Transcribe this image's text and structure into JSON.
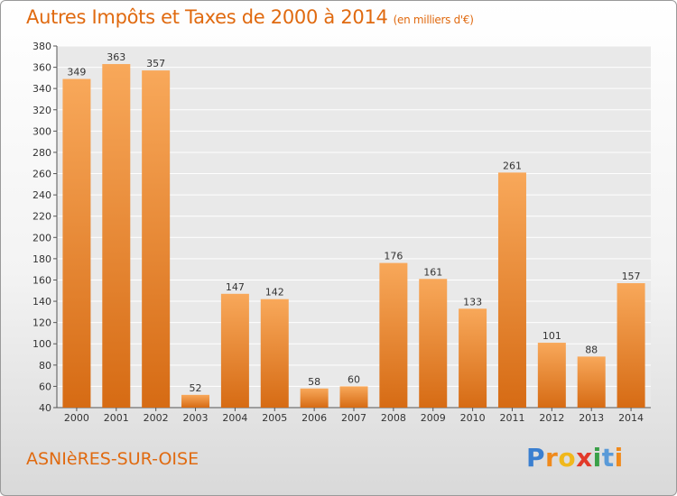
{
  "chart_data": {
    "type": "bar",
    "title": "Autres Impôts et Taxes de 2000 à 2014",
    "subtitle": "(en milliers d'€)",
    "categories": [
      "2000",
      "2001",
      "2002",
      "2003",
      "2004",
      "2005",
      "2006",
      "2007",
      "2008",
      "2009",
      "2010",
      "2011",
      "2012",
      "2013",
      "2014"
    ],
    "values": [
      349,
      363,
      357,
      52,
      147,
      142,
      58,
      60,
      176,
      161,
      133,
      261,
      101,
      88,
      157
    ],
    "ylim": [
      40,
      380
    ],
    "yticks": [
      40,
      60,
      80,
      100,
      120,
      140,
      160,
      180,
      200,
      220,
      240,
      260,
      280,
      300,
      320,
      340,
      360,
      380
    ],
    "grid": true,
    "legend": "none",
    "xlabel": "",
    "ylabel": ""
  },
  "footer": {
    "commune": "ASNIèRES-SUR-OISE",
    "logo_letters": [
      "P",
      "r",
      "o",
      "x",
      "i",
      "t",
      "i"
    ]
  },
  "colors": {
    "accent": "#e06a10",
    "bar_light": "#f8a85a",
    "bar_dark": "#d66b14",
    "logo": [
      "#3a7fd0",
      "#f08a1c",
      "#f0b81c",
      "#e23a2a",
      "#3aa048",
      "#5a9ad8",
      "#f08a1c"
    ]
  }
}
